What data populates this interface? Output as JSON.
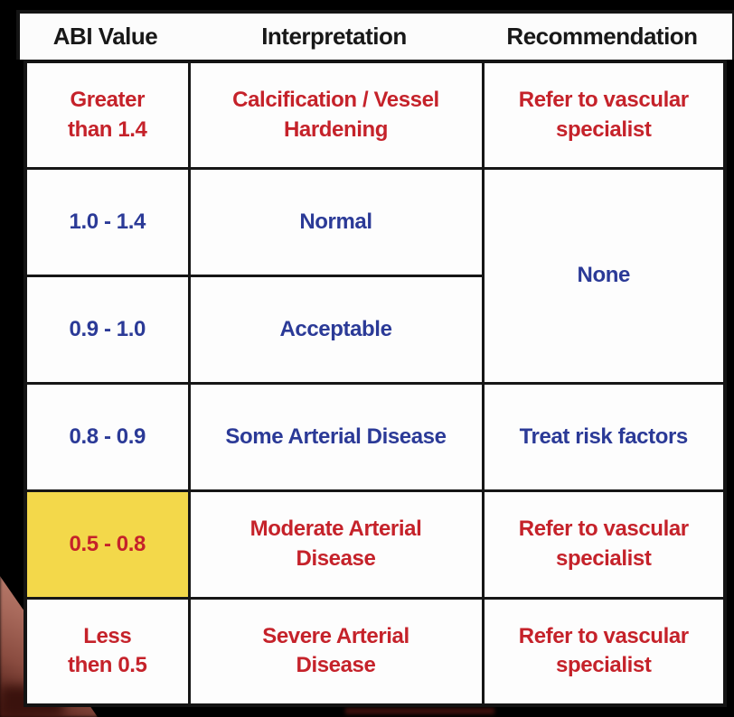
{
  "table": {
    "headers": [
      "ABI Value",
      "Interpretation",
      "Recommendation"
    ],
    "rows": [
      {
        "abi": "Greater\nthan 1.4",
        "interpretation": "Calcification / Vessel\nHardening",
        "recommendation": "Refer to vascular\nspecialist",
        "color": "red",
        "highlighted": false
      },
      {
        "abi": "1.0 - 1.4",
        "interpretation": "Normal",
        "recommendation": "None",
        "recommendation_spans_rows": 2,
        "color": "blue",
        "highlighted": false
      },
      {
        "abi": "0.9 - 1.0",
        "interpretation": "Acceptable",
        "recommendation": "(merged with row above)",
        "color": "blue",
        "highlighted": false
      },
      {
        "abi": "0.8 - 0.9",
        "interpretation": "Some Arterial Disease",
        "recommendation": "Treat risk factors",
        "color": "blue",
        "highlighted": false
      },
      {
        "abi": "0.5 - 0.8",
        "interpretation": "Moderate Arterial\nDisease",
        "recommendation": "Refer to vascular\nspecialist",
        "color": "red",
        "highlighted": true
      },
      {
        "abi": "Less\nthen 0.5",
        "interpretation": "Severe Arterial\nDisease",
        "recommendation": "Refer to vascular\nspecialist",
        "color": "red",
        "highlighted": false
      }
    ]
  },
  "colors": {
    "red_text": "#c5222a",
    "blue_text": "#2b3a97",
    "yellow_highlight": "#f3d84a",
    "header_text": "#181818",
    "cell_background": "#fdfdfd",
    "table_border": "#141414",
    "page_background": "#000000"
  }
}
